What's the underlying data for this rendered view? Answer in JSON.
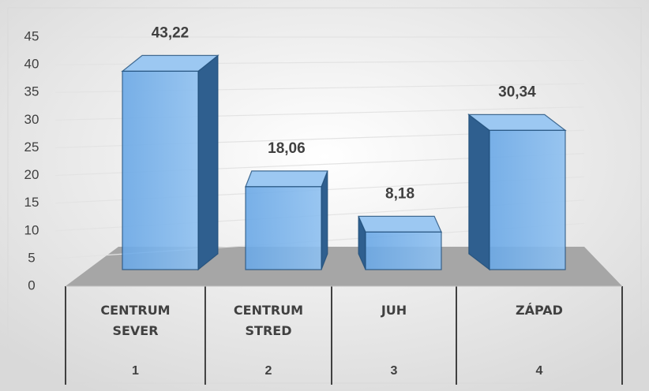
{
  "chart_data": {
    "type": "bar3d",
    "categories": [
      "CENTRUM SEVER",
      "CENTRUM STRED",
      "JUH",
      "ZÁPAD"
    ],
    "subcategories": [
      1,
      2,
      3,
      4
    ],
    "values": [
      43.22,
      18.06,
      8.18,
      30.34
    ],
    "value_labels": [
      "43,22",
      "18,06",
      "8,18",
      "30,34"
    ],
    "color": "#5b9bd5",
    "ylim": [
      0,
      45
    ],
    "yticks": [
      0,
      5,
      10,
      15,
      20,
      25,
      30,
      35,
      40,
      45
    ],
    "grid": true
  }
}
